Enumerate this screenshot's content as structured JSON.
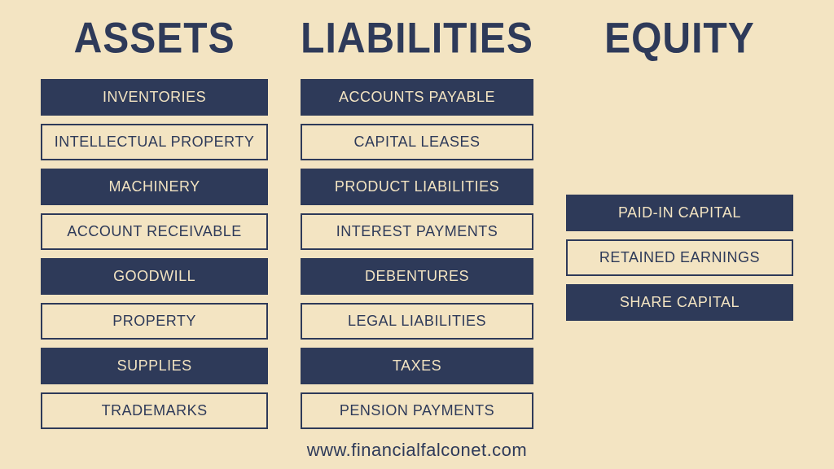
{
  "colors": {
    "background": "#f3e4c2",
    "dark": "#2e3a59"
  },
  "columns": {
    "assets": {
      "title": "ASSETS",
      "items": [
        {
          "label": "INVENTORIES",
          "style": "filled"
        },
        {
          "label": "INTELLECTUAL PROPERTY",
          "style": "outlined"
        },
        {
          "label": "MACHINERY",
          "style": "filled"
        },
        {
          "label": "ACCOUNT RECEIVABLE",
          "style": "outlined"
        },
        {
          "label": "GOODWILL",
          "style": "filled"
        },
        {
          "label": "PROPERTY",
          "style": "outlined"
        },
        {
          "label": "SUPPLIES",
          "style": "filled"
        },
        {
          "label": "TRADEMARKS",
          "style": "outlined"
        }
      ]
    },
    "liabilities": {
      "title": "LIABILITIES",
      "items": [
        {
          "label": "ACCOUNTS PAYABLE",
          "style": "filled"
        },
        {
          "label": "CAPITAL LEASES",
          "style": "outlined"
        },
        {
          "label": "PRODUCT LIABILITIES",
          "style": "filled"
        },
        {
          "label": "INTEREST PAYMENTS",
          "style": "outlined"
        },
        {
          "label": "DEBENTURES",
          "style": "filled"
        },
        {
          "label": "LEGAL LIABILITIES",
          "style": "outlined"
        },
        {
          "label": "TAXES",
          "style": "filled"
        },
        {
          "label": "PENSION PAYMENTS",
          "style": "outlined"
        }
      ]
    },
    "equity": {
      "title": "EQUITY",
      "items": [
        {
          "label": "PAID-IN CAPITAL",
          "style": "filled"
        },
        {
          "label": "RETAINED EARNINGS",
          "style": "outlined"
        },
        {
          "label": "SHARE CAPITAL",
          "style": "filled"
        }
      ]
    }
  },
  "footer": "www.financialfalconet.com"
}
